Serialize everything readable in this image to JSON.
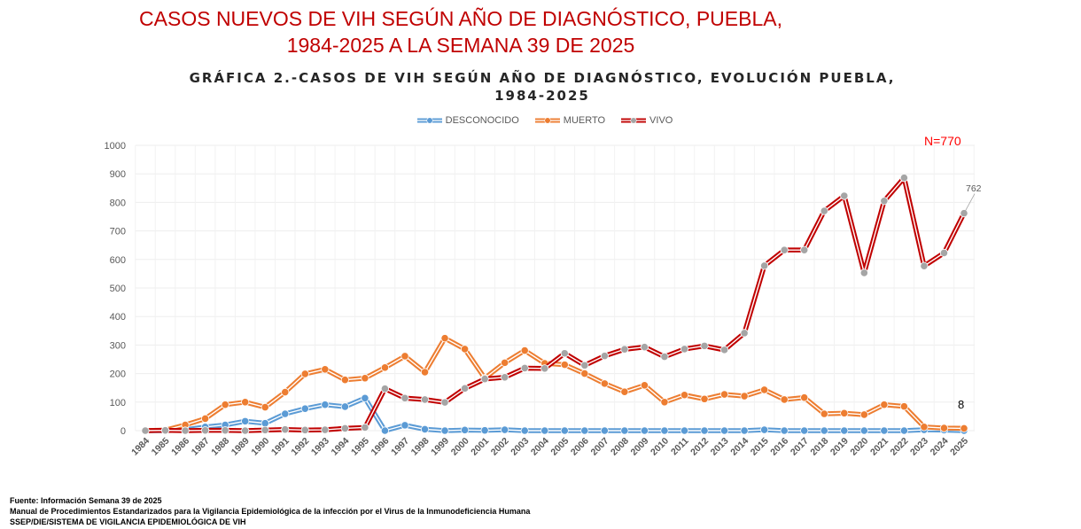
{
  "header": {
    "title_line1": "CASOS NUEVOS DE VIH SEGÚN AÑO DE DIAGNÓSTICO, PUEBLA,",
    "title_line2": "1984-2025 A LA SEMANA 39 DE 2025",
    "subtitle_line1": "GRÁFICA 2.-CASOS DE VIH SEGÚN AÑO DE DIAGNÓSTICO, EVOLUCIÓN PUEBLA,",
    "subtitle_line2": "1984-2025"
  },
  "annotations": {
    "total_label": "N=770",
    "last_vivo_label": "762",
    "last_muerto_label": "8"
  },
  "colors": {
    "title": "#C00000",
    "desconocido": "#5B9BD5",
    "muerto": "#ED7D31",
    "vivo": "#C00000",
    "vivo_marker": "#A5A5A5",
    "total_label": "#FF0000"
  },
  "footer": {
    "line1": "Fuente: Información Semana 39 de 2025",
    "line2": "Manual de Procedimientos Estandarizados para la Vigilancia Epidemiológica de la infección por el Virus de la Inmunodeficiencia Humana",
    "line3": "SSEP/DIE/SISTEMA DE VIGILANCIA EPIDEMIOLÓGICA DE VIH"
  },
  "chart_data": {
    "type": "line",
    "title": "GRÁFICA 2.-CASOS DE VIH SEGÚN AÑO DE DIAGNÓSTICO, EVOLUCIÓN PUEBLA, 1984-2025",
    "xlabel": "",
    "ylabel": "",
    "ylim": [
      0,
      1000
    ],
    "yticks": [
      0,
      100,
      200,
      300,
      400,
      500,
      600,
      700,
      800,
      900,
      1000
    ],
    "grid": true,
    "legend_position": "top-center",
    "x": [
      "1984",
      "1985",
      "1986",
      "1987",
      "1988",
      "1989",
      "1990",
      "1991",
      "1992",
      "1993",
      "1994",
      "1995",
      "1996",
      "1997",
      "1998",
      "1999",
      "2000",
      "2001",
      "2002",
      "2003",
      "2004",
      "2005",
      "2006",
      "2007",
      "2008",
      "2009",
      "2010",
      "2011",
      "2012",
      "2013",
      "2014",
      "2015",
      "2016",
      "2017",
      "2018",
      "2019",
      "2020",
      "2021",
      "2022",
      "2023",
      "2024",
      "2025"
    ],
    "series": [
      {
        "name": "DESCONOCIDO",
        "key": "desconocido",
        "values": [
          0,
          0,
          3,
          13,
          20,
          33,
          26,
          59,
          77,
          91,
          84,
          114,
          0,
          19,
          5,
          0,
          2,
          1,
          3,
          0,
          0,
          0,
          0,
          0,
          0,
          0,
          0,
          0,
          0,
          0,
          0,
          3,
          0,
          0,
          0,
          0,
          0,
          0,
          0,
          3,
          2,
          0
        ]
      },
      {
        "name": "MUERTO",
        "key": "muerto",
        "values": [
          0,
          2,
          20,
          42,
          91,
          100,
          82,
          135,
          199,
          215,
          178,
          184,
          221,
          261,
          205,
          324,
          286,
          184,
          238,
          281,
          236,
          231,
          200,
          165,
          136,
          159,
          100,
          125,
          111,
          127,
          121,
          143,
          109,
          116,
          59,
          61,
          56,
          91,
          85,
          13,
          9,
          8
        ]
      },
      {
        "name": "VIVO",
        "key": "vivo",
        "values": [
          0,
          1,
          0,
          1,
          1,
          0,
          2,
          4,
          2,
          3,
          8,
          11,
          147,
          114,
          109,
          99,
          148,
          181,
          187,
          219,
          218,
          271,
          229,
          262,
          285,
          293,
          259,
          286,
          297,
          283,
          342,
          578,
          633,
          633,
          770,
          823,
          553,
          805,
          886,
          577,
          623,
          762
        ]
      }
    ]
  }
}
